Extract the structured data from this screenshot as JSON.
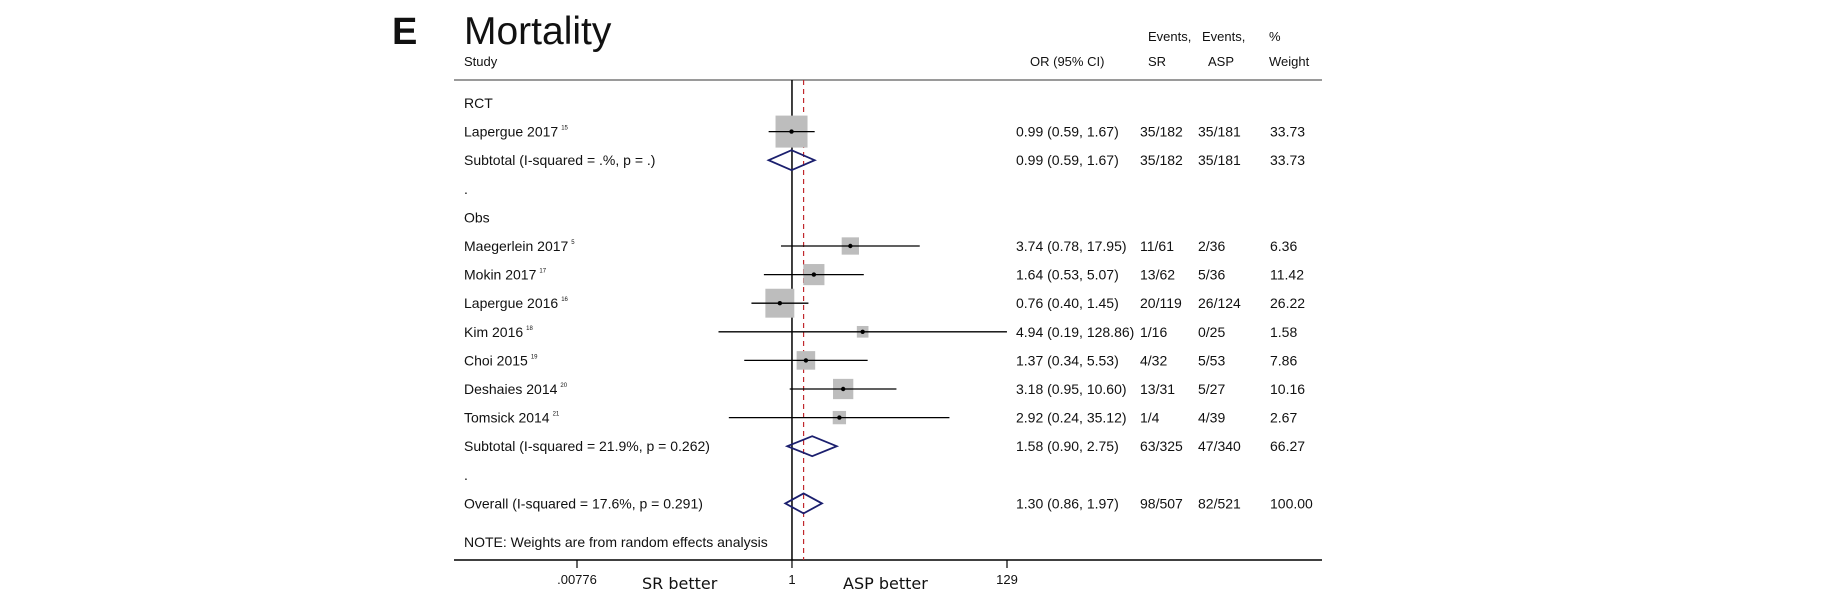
{
  "chart_data": {
    "type": "forest",
    "panel_label": "E",
    "title": "Mortality",
    "headers": {
      "study": "Study",
      "or_ci": "OR (95% CI)",
      "events_sr": [
        "Events,",
        "SR"
      ],
      "events_asp": [
        "Events,",
        "ASP"
      ],
      "weight": [
        "%",
        "Weight"
      ]
    },
    "x_axis": {
      "scale": "log",
      "range": [
        0.00776,
        129
      ],
      "ticks": [
        {
          "value": 0.00776,
          "label": ".00776"
        },
        {
          "value": 1,
          "label": "1"
        },
        {
          "value": 129,
          "label": "129"
        }
      ],
      "left_label": "SR better",
      "right_label": "ASP better",
      "overall_reference": 1.3
    },
    "rows": [
      {
        "kind": "group",
        "label": "RCT"
      },
      {
        "kind": "study",
        "label": "Lapergue 2017",
        "ref": "15",
        "or": 0.99,
        "lo": 0.59,
        "hi": 1.67,
        "text": "0.99 (0.59, 1.67)",
        "sr": "35/182",
        "asp": "35/181",
        "weight_text": "33.73",
        "weight": 33.73
      },
      {
        "kind": "subtotal",
        "label": "Subtotal  (I-squared = .%, p = .)",
        "or": 0.99,
        "lo": 0.59,
        "hi": 1.67,
        "text": "0.99 (0.59, 1.67)",
        "sr": "35/182",
        "asp": "35/181",
        "weight_text": "33.73"
      },
      {
        "kind": "spacer",
        "label": "."
      },
      {
        "kind": "group",
        "label": "Obs"
      },
      {
        "kind": "study",
        "label": "Maegerlein 2017",
        "ref": "5",
        "or": 3.74,
        "lo": 0.78,
        "hi": 17.95,
        "text": "3.74 (0.78, 17.95)",
        "sr": "11/61",
        "asp": "2/36",
        "weight_text": "6.36",
        "weight": 6.36
      },
      {
        "kind": "study",
        "label": "Mokin 2017",
        "ref": "17",
        "or": 1.64,
        "lo": 0.53,
        "hi": 5.07,
        "text": "1.64 (0.53, 5.07)",
        "sr": "13/62",
        "asp": "5/36",
        "weight_text": "11.42",
        "weight": 11.42
      },
      {
        "kind": "study",
        "label": "Lapergue 2016",
        "ref": "16",
        "or": 0.76,
        "lo": 0.4,
        "hi": 1.45,
        "text": "0.76 (0.40, 1.45)",
        "sr": "20/119",
        "asp": "26/124",
        "weight_text": "26.22",
        "weight": 26.22
      },
      {
        "kind": "study",
        "label": "Kim 2016",
        "ref": "18",
        "or": 4.94,
        "lo": 0.19,
        "hi": 128.86,
        "text": "4.94 (0.19, 128.86)",
        "sr": "1/16",
        "asp": "0/25",
        "weight_text": "1.58",
        "weight": 1.58
      },
      {
        "kind": "study",
        "label": "Choi 2015",
        "ref": "19",
        "or": 1.37,
        "lo": 0.34,
        "hi": 5.53,
        "text": "1.37 (0.34, 5.53)",
        "sr": "4/32",
        "asp": "5/53",
        "weight_text": "7.86",
        "weight": 7.86
      },
      {
        "kind": "study",
        "label": "Deshaies 2014",
        "ref": "20",
        "or": 3.18,
        "lo": 0.95,
        "hi": 10.6,
        "text": "3.18 (0.95, 10.60)",
        "sr": "13/31",
        "asp": "5/27",
        "weight_text": "10.16",
        "weight": 10.16
      },
      {
        "kind": "study",
        "label": "Tomsick 2014",
        "ref": "21",
        "or": 2.92,
        "lo": 0.24,
        "hi": 35.12,
        "text": "2.92 (0.24, 35.12)",
        "sr": "1/4",
        "asp": "4/39",
        "weight_text": "2.67",
        "weight": 2.67
      },
      {
        "kind": "subtotal",
        "label": "Subtotal  (I-squared = 21.9%, p = 0.262)",
        "or": 1.58,
        "lo": 0.9,
        "hi": 2.75,
        "text": "1.58 (0.90, 2.75)",
        "sr": "63/325",
        "asp": "47/340",
        "weight_text": "66.27"
      },
      {
        "kind": "spacer",
        "label": "."
      },
      {
        "kind": "overall",
        "label": "Overall  (I-squared = 17.6%, p = 0.291)",
        "or": 1.3,
        "lo": 0.86,
        "hi": 1.97,
        "text": "1.30 (0.86, 1.97)",
        "sr": "98/507",
        "asp": "82/521",
        "weight_text": "100.00"
      }
    ],
    "note": "NOTE: Weights are from random effects analysis",
    "colors": {
      "diamond": "#1b1f6e",
      "box": "#bdbdbd",
      "reference_dashed": "#c0282d",
      "line": "#000000"
    }
  }
}
